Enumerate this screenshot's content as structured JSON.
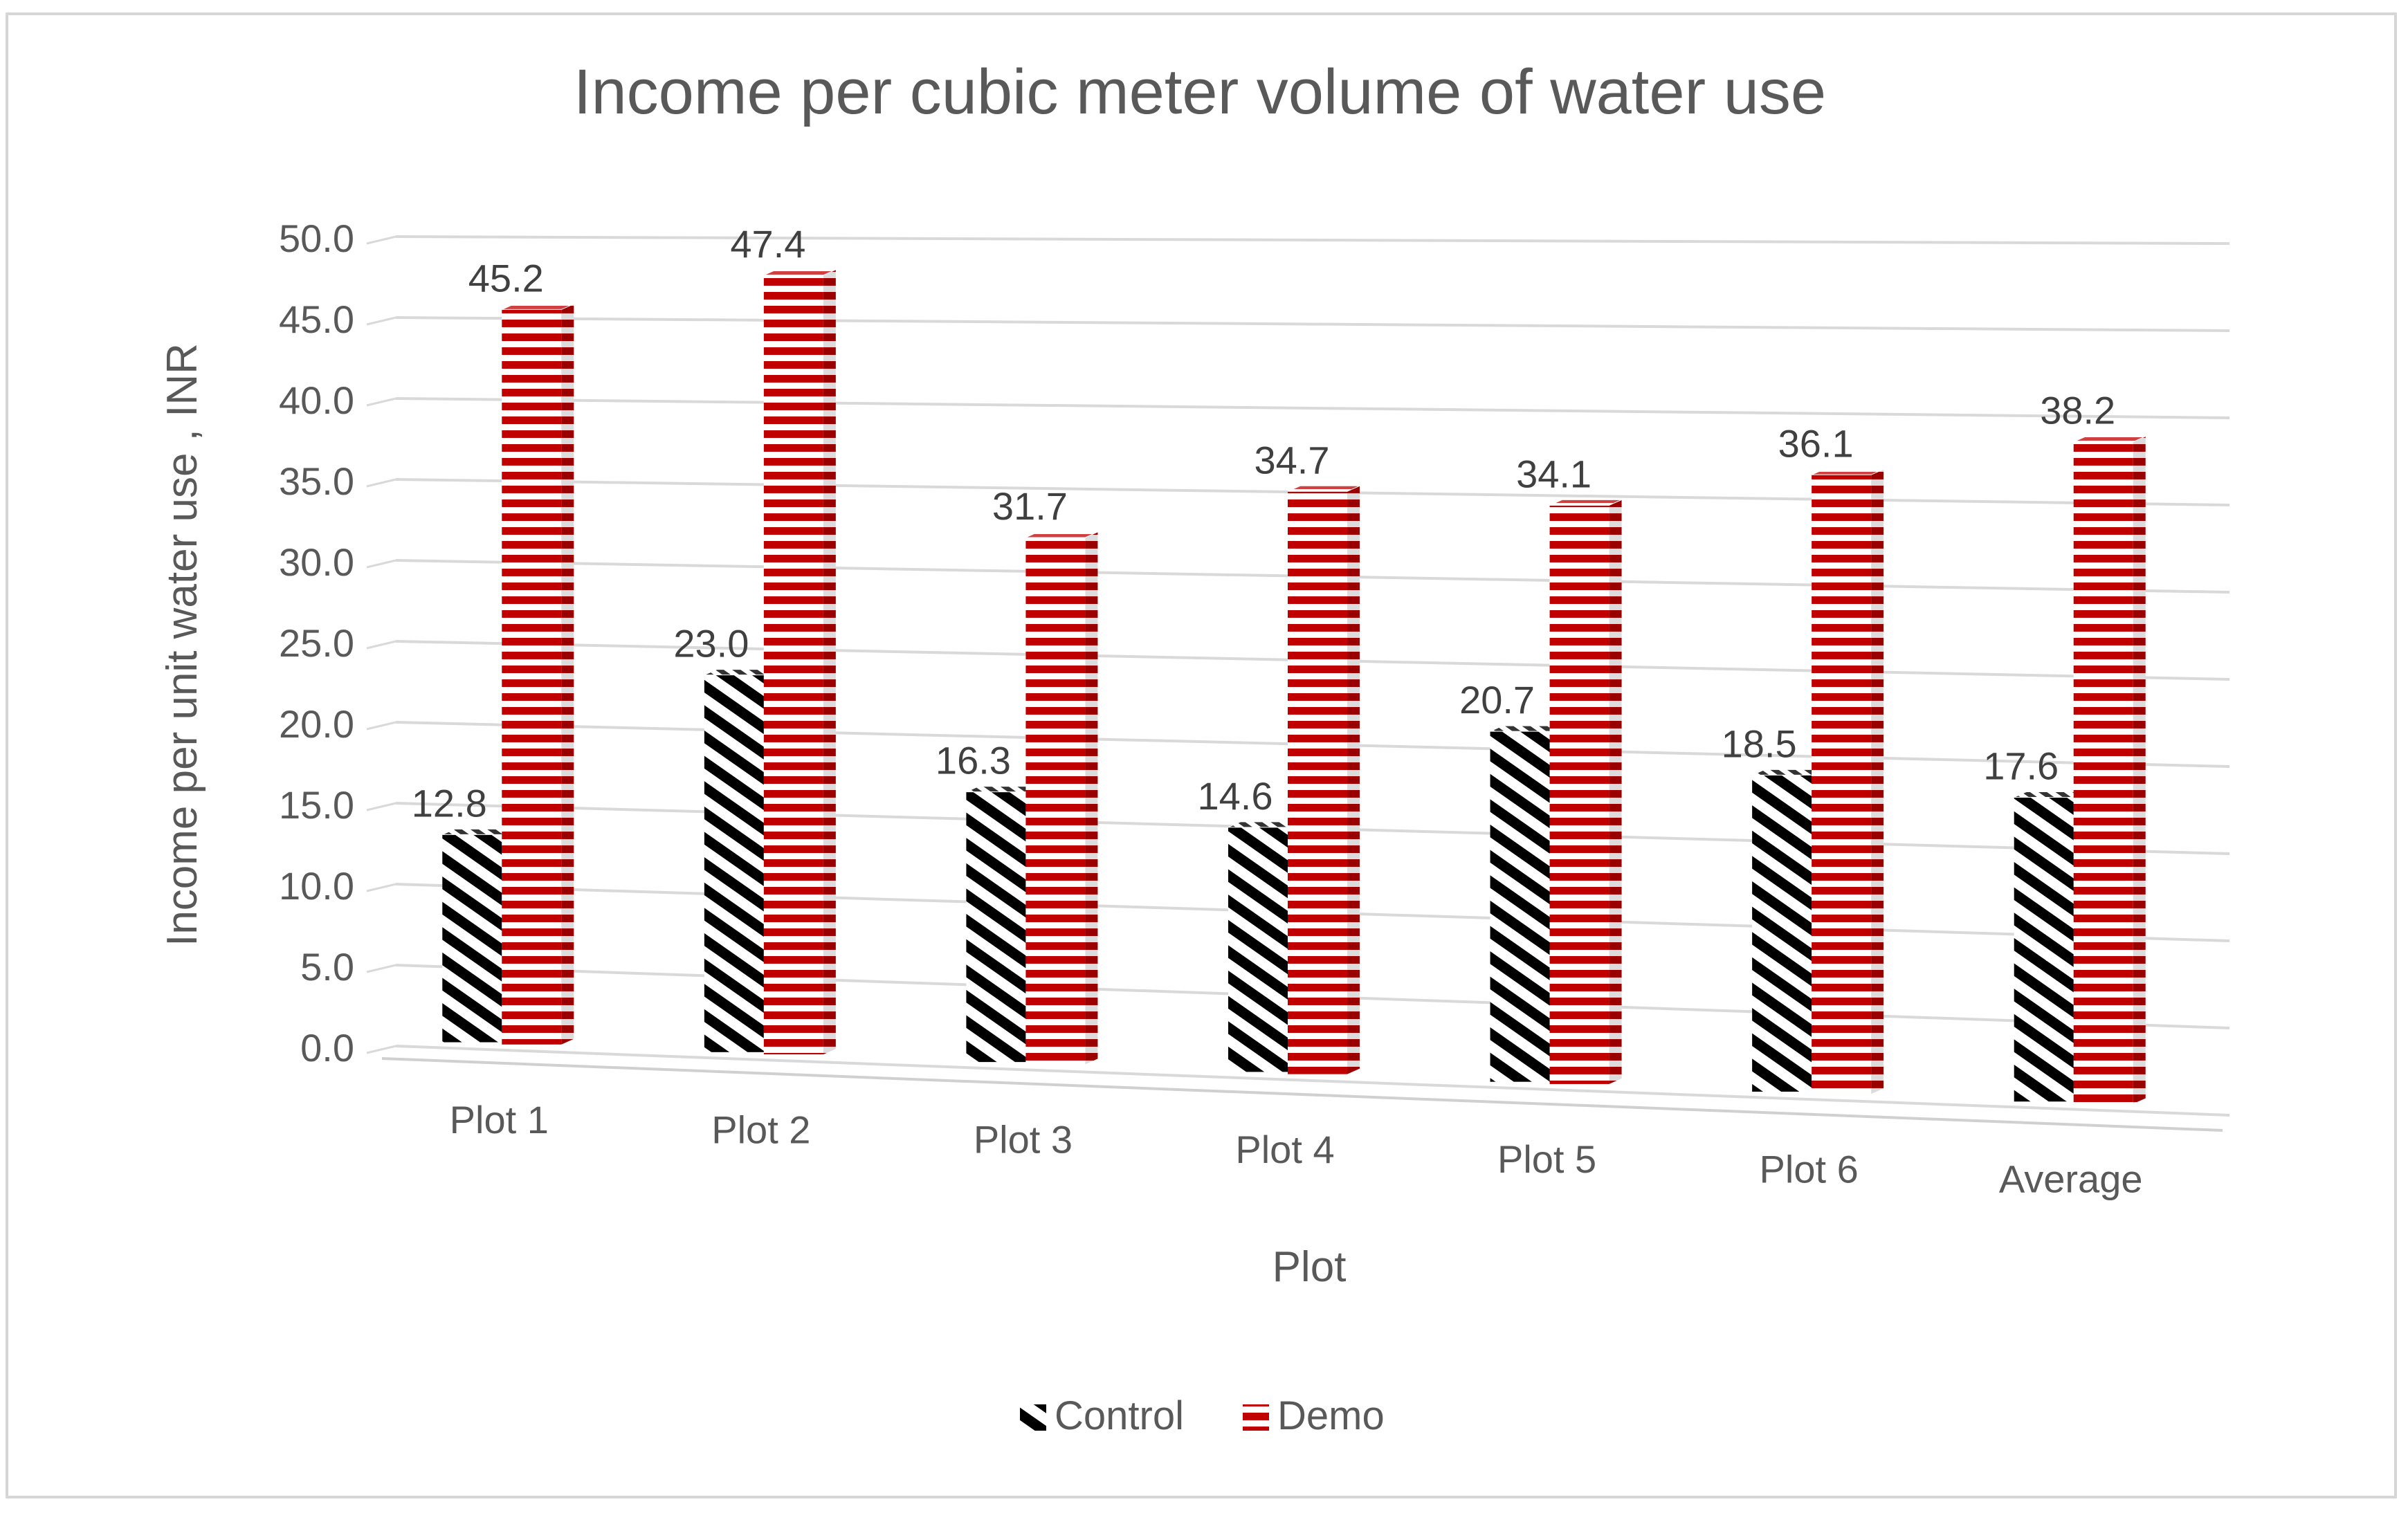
{
  "chart_data": {
    "type": "bar",
    "title": "Income per cubic meter volume of water use",
    "xlabel": "Plot",
    "ylabel": "Income per unit water use , INR",
    "categories": [
      "Plot 1",
      "Plot 2",
      "Plot 3",
      "Plot 4",
      "Plot 5",
      "Plot 6",
      "Average"
    ],
    "series": [
      {
        "name": "Control",
        "pattern": "diagonal-stripes",
        "colors": [
          "#000000",
          "#ffffff"
        ],
        "values": [
          12.8,
          23.0,
          16.3,
          14.6,
          20.7,
          18.5,
          17.6
        ],
        "labels": [
          "12.8",
          "23.0",
          "16.3",
          "14.6",
          "20.7",
          "18.5",
          "17.6"
        ]
      },
      {
        "name": "Demo",
        "pattern": "horizontal-stripes",
        "colors": [
          "#c00000",
          "#ffffff"
        ],
        "values": [
          45.2,
          47.4,
          31.7,
          34.7,
          34.1,
          36.1,
          38.2
        ],
        "labels": [
          "45.2",
          "47.4",
          "31.7",
          "34.7",
          "34.1",
          "36.1",
          "38.2"
        ]
      }
    ],
    "ylim": [
      0,
      50
    ],
    "yticks": [
      "0.0",
      "5.0",
      "10.0",
      "15.0",
      "20.0",
      "25.0",
      "30.0",
      "35.0",
      "40.0",
      "45.0",
      "50.0"
    ],
    "grid": true,
    "legend": "bottom-center",
    "style": "3d-clustered-column"
  }
}
